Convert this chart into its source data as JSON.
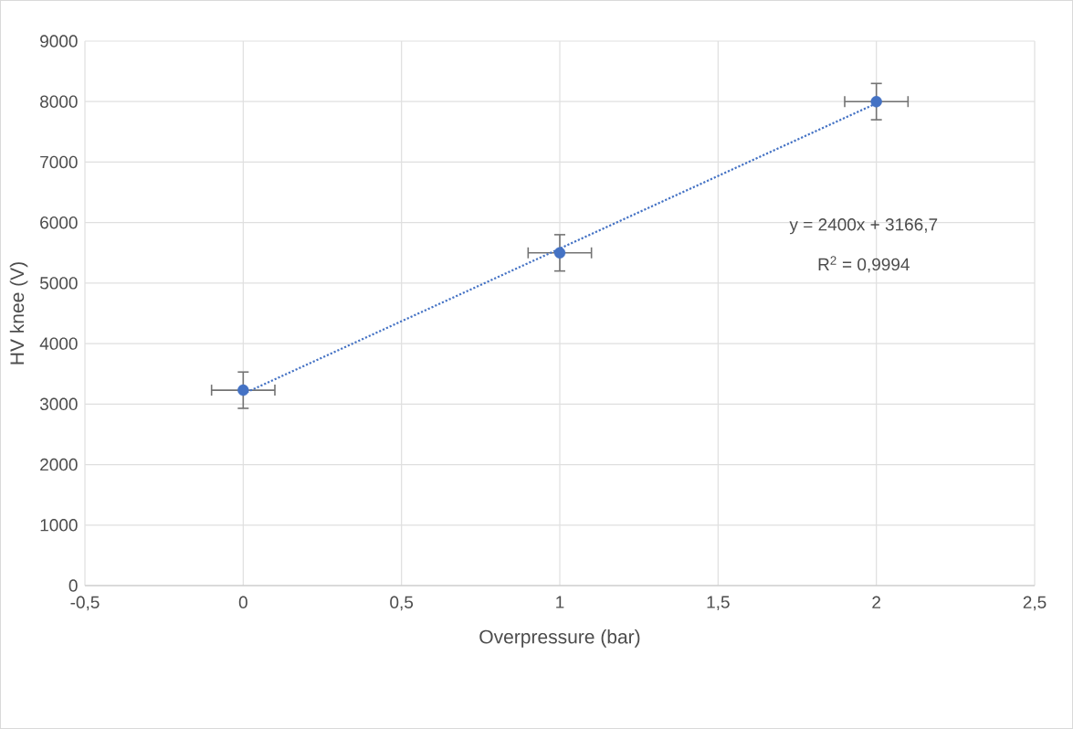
{
  "chart_data": {
    "type": "scatter",
    "xlabel": "Overpressure (bar)",
    "ylabel": "HV knee (V)",
    "series": [
      {
        "color": "#4472c4",
        "x": [
          0,
          1,
          2
        ],
        "values": [
          3230,
          5500,
          8000
        ],
        "errors": [
          300,
          300,
          300
        ],
        "xerrors": [
          0.1,
          0.1,
          0.1
        ],
        "marker": "circle"
      },
      {
        "type": "line",
        "color": "#4472c4",
        "x": [
          0,
          2
        ],
        "values": [
          3170,
          7970
        ],
        "line_style": "dotted",
        "marker": "none"
      }
    ],
    "xlim": [
      -0.5,
      2.5
    ],
    "xticks": [
      {
        "value": -0.5,
        "label": "-0,5"
      },
      0,
      {
        "value": 0.5,
        "label": "0,5"
      },
      1,
      {
        "value": 1.5,
        "label": "1,5"
      },
      2,
      {
        "value": 2.5,
        "label": "2,5"
      }
    ],
    "ylim": [
      0,
      9000
    ],
    "yticks": [
      0,
      1000,
      2000,
      3000,
      4000,
      5000,
      6000,
      7000,
      8000,
      9000
    ],
    "grid": true,
    "annotations": [
      "y = 2400x + 3166,7",
      "R$^{2}$ = 0,9994"
    ]
  }
}
